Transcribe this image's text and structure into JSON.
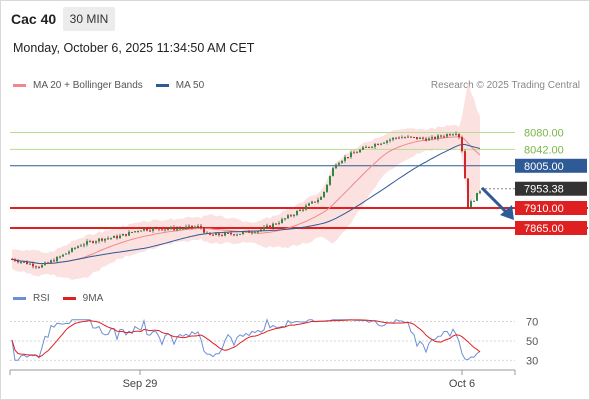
{
  "header": {
    "instrument": "Cac 40",
    "timeframe": "30 MIN"
  },
  "datetime": "Monday, October 6, 2025 11:34:50 AM CET",
  "legend_main": [
    {
      "label": "MA 20 + Bollinger Bands",
      "color": "#f08a8a"
    },
    {
      "label": "MA 50",
      "color": "#2e5a96"
    }
  ],
  "credit": "Research © 2025 Trading Central",
  "legend_rsi": [
    {
      "label": "RSI",
      "color": "#6b8fd6"
    },
    {
      "label": "9MA",
      "color": "#e02020"
    }
  ],
  "chart_data": [
    {
      "type": "candlestick",
      "x_labels": [
        "Sep 29",
        "Oct 6"
      ],
      "ylim": [
        7748,
        8135
      ],
      "price_lines": [
        {
          "label": "8080.00",
          "value": 8080,
          "color": "#7ab648",
          "style": "level"
        },
        {
          "label": "8042.00",
          "value": 8042,
          "color": "#7ab648",
          "style": "level"
        },
        {
          "label": "8005.00",
          "value": 8005,
          "color": "#2e5a96",
          "style": "ma50"
        },
        {
          "label": "7953.38",
          "value": 7953.38,
          "color": "#333333",
          "style": "last"
        },
        {
          "label": "7910.00",
          "value": 7910,
          "color": "#e02020",
          "style": "support"
        },
        {
          "label": "7865.00",
          "value": 7865,
          "color": "#e02020",
          "style": "support"
        }
      ],
      "forecast_arrow": {
        "from": 7953,
        "to": 7865
      }
    },
    {
      "type": "line",
      "series": [
        {
          "name": "RSI"
        },
        {
          "name": "9MA"
        }
      ],
      "ylim": [
        22,
        80
      ],
      "y_ticks": [
        {
          "label": "70",
          "value": 70
        },
        {
          "label": "50",
          "value": 50
        },
        {
          "label": "30",
          "value": 30
        }
      ]
    }
  ]
}
